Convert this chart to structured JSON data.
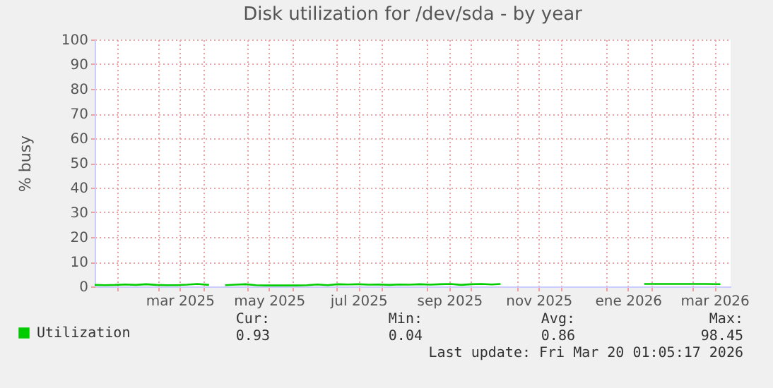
{
  "chart_data": {
    "type": "line",
    "title": "Disk utilization for /dev/sda - by year",
    "ylabel": "% busy",
    "x": [
      "2025-01-17",
      "2025-01-24",
      "2025-01-31",
      "2025-02-07",
      "2025-02-14",
      "2025-02-21",
      "2025-02-28",
      "2025-03-07",
      "2025-03-14",
      "2025-03-21",
      "2025-03-28",
      "2025-04-05",
      "2025-04-10",
      "2025-04-16",
      "2025-04-23",
      "2025-04-30",
      "2025-05-07",
      "2025-05-14",
      "2025-05-21",
      "2025-05-28",
      "2025-06-04",
      "2025-06-11",
      "2025-06-18",
      "2025-06-25",
      "2025-07-02",
      "2025-07-09",
      "2025-07-16",
      "2025-07-23",
      "2025-07-30",
      "2025-08-06",
      "2025-08-13",
      "2025-08-20",
      "2025-08-27",
      "2025-09-03",
      "2025-09-10",
      "2025-09-17",
      "2025-09-24",
      "2025-10-01",
      "2025-10-08",
      "2025-10-15",
      "2025-10-21",
      "2025-12-01",
      "2026-01-27",
      "2026-02-10",
      "2026-02-24",
      "2026-03-10",
      "2026-03-20"
    ],
    "series": [
      {
        "name": "Utilization",
        "color": "#00cc00",
        "values": [
          0.6,
          0.5,
          0.6,
          0.8,
          0.6,
          0.9,
          0.6,
          0.5,
          0.5,
          0.7,
          1.0,
          0.6,
          null,
          0.5,
          0.7,
          0.9,
          0.5,
          0.4,
          0.4,
          0.4,
          0.4,
          0.5,
          0.8,
          0.5,
          0.9,
          0.8,
          0.9,
          0.7,
          0.8,
          0.6,
          0.8,
          0.7,
          0.9,
          0.7,
          0.9,
          1.0,
          0.6,
          0.9,
          1.0,
          0.8,
          1.0,
          null,
          1.0,
          1.0,
          1.0,
          1.0,
          0.93
        ]
      }
    ],
    "xlim": [
      "2025-01-17",
      "2026-03-27"
    ],
    "xticks": [
      {
        "value": "2025-02-01",
        "label": null
      },
      {
        "value": "2025-03-01",
        "label": null
      },
      {
        "value": "2025-03-16",
        "label": "mar 2025"
      },
      {
        "value": "2025-04-01",
        "label": null
      },
      {
        "value": "2025-05-01",
        "label": null
      },
      {
        "value": "2025-05-16",
        "label": "may 2025"
      },
      {
        "value": "2025-06-01",
        "label": null
      },
      {
        "value": "2025-07-01",
        "label": null
      },
      {
        "value": "2025-07-16",
        "label": "jul 2025"
      },
      {
        "value": "2025-08-01",
        "label": null
      },
      {
        "value": "2025-09-01",
        "label": null
      },
      {
        "value": "2025-09-16",
        "label": "sep 2025"
      },
      {
        "value": "2025-10-01",
        "label": null
      },
      {
        "value": "2025-11-01",
        "label": null
      },
      {
        "value": "2025-11-16",
        "label": "nov 2025"
      },
      {
        "value": "2025-12-01",
        "label": null
      },
      {
        "value": "2026-01-01",
        "label": null
      },
      {
        "value": "2026-01-16",
        "label": "ene 2026"
      },
      {
        "value": "2026-02-01",
        "label": null
      },
      {
        "value": "2026-03-01",
        "label": null
      },
      {
        "value": "2026-03-16",
        "label": "mar 2026"
      }
    ],
    "ylim": [
      0,
      100
    ],
    "yticks": [
      0,
      10,
      20,
      30,
      40,
      50,
      60,
      70,
      80,
      90,
      100
    ],
    "grid": true,
    "legend": "bottom left",
    "marker": "none",
    "line_style": "solid",
    "annotations": [
      "Cur:",
      "Min:",
      "Avg:",
      "Max:",
      "0.93",
      "0.04",
      "0.86",
      "98.45",
      "Last update: Fri Mar 20 01:05:17 2026"
    ]
  }
}
